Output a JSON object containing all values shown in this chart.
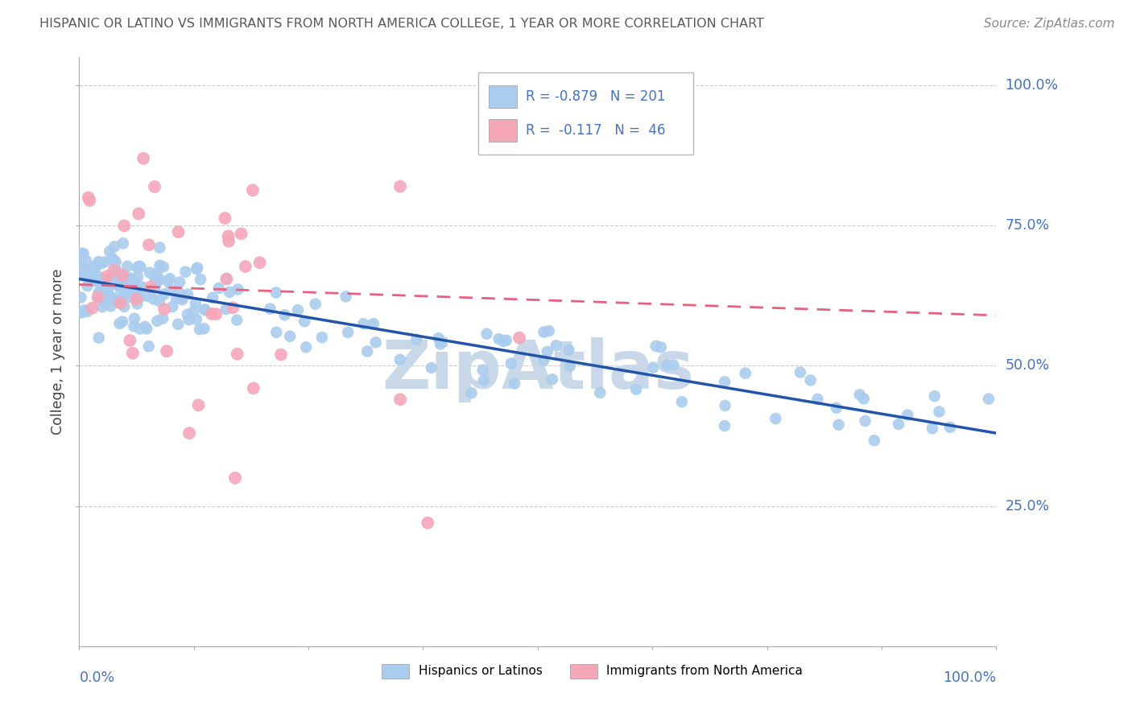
{
  "title": "HISPANIC OR LATINO VS IMMIGRANTS FROM NORTH AMERICA COLLEGE, 1 YEAR OR MORE CORRELATION CHART",
  "source": "Source: ZipAtlas.com",
  "ylabel": "College, 1 year or more",
  "legend_blue_R": "-0.879",
  "legend_blue_N": "201",
  "legend_pink_R": "-0.117",
  "legend_pink_N": "46",
  "legend_blue_label": "Hispanics or Latinos",
  "legend_pink_label": "Immigrants from North America",
  "blue_color": "#aaccee",
  "pink_color": "#f4a7b9",
  "blue_line_color": "#2255aa",
  "pink_line_color": "#e86080",
  "background_color": "#ffffff",
  "grid_color": "#cccccc",
  "axis_label_color": "#4472c4",
  "title_color": "#595959",
  "watermark_color": "#c8d8e8"
}
